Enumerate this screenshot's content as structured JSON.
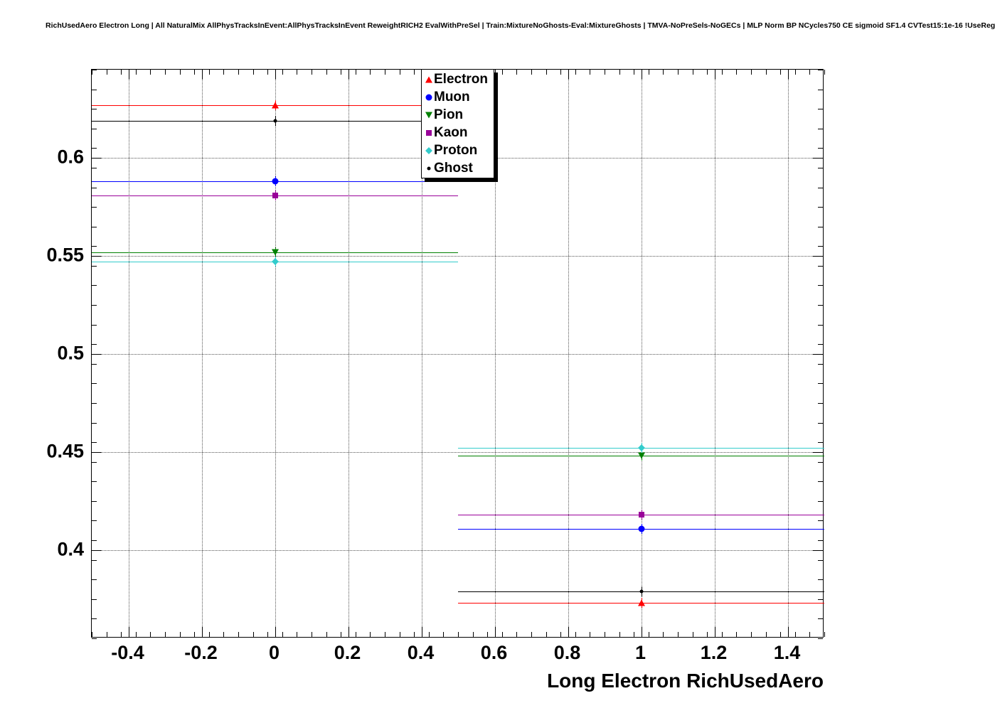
{
  "title": "RichUsedAero Electron Long | All NaturalMix AllPhysTracksInEvent:AllPhysTracksInEvent ReweightRICH2 EvalWithPreSel | Train:MixtureNoGhosts-Eval:MixtureGhosts | TMVA-NoPreSels-NoGECs | MLP Norm BP NCycles750 CE sigmoid SF1.4 CVTest15:1e-16 !UseReg",
  "chart_data": {
    "type": "scatter",
    "title": "",
    "xlabel": "Long Electron RichUsedAero",
    "ylabel": "",
    "xlim": [
      -0.5,
      1.5
    ],
    "ylim": [
      0.355,
      0.645
    ],
    "grid": true,
    "legend_position": "top-center",
    "x_ticks": [
      -0.4,
      -0.2,
      0,
      0.2,
      0.4,
      0.6,
      0.8,
      1,
      1.2,
      1.4
    ],
    "x_tick_labels": [
      "-0.4",
      "-0.2",
      "0",
      "0.2",
      "0.4",
      "0.6",
      "0.8",
      "1",
      "1.2",
      "1.4"
    ],
    "y_ticks": [
      0.4,
      0.45,
      0.5,
      0.55,
      0.6
    ],
    "y_tick_labels": [
      "0.4",
      "0.45",
      "0.5",
      "0.55",
      "0.6"
    ],
    "x_minor_step": 0.04,
    "y_minor_step": 0.01,
    "series": [
      {
        "name": "Electron",
        "color": "#ff0000",
        "marker": "triangle-up",
        "points": [
          {
            "x": 0,
            "y": 0.627,
            "xlow": -0.5,
            "xhigh": 0.5
          },
          {
            "x": 1,
            "y": 0.373,
            "xlow": 0.5,
            "xhigh": 1.5
          }
        ]
      },
      {
        "name": "Muon",
        "color": "#0000ff",
        "marker": "circle",
        "points": [
          {
            "x": 0,
            "y": 0.588,
            "xlow": -0.5,
            "xhigh": 0.5
          },
          {
            "x": 1,
            "y": 0.411,
            "xlow": 0.5,
            "xhigh": 1.5
          }
        ]
      },
      {
        "name": "Pion",
        "color": "#008000",
        "marker": "triangle-down",
        "points": [
          {
            "x": 0,
            "y": 0.552,
            "xlow": -0.5,
            "xhigh": 0.5
          },
          {
            "x": 1,
            "y": 0.448,
            "xlow": 0.5,
            "xhigh": 1.5
          }
        ]
      },
      {
        "name": "Kaon",
        "color": "#990099",
        "marker": "square",
        "points": [
          {
            "x": 0,
            "y": 0.581,
            "xlow": -0.5,
            "xhigh": 0.5
          },
          {
            "x": 1,
            "y": 0.418,
            "xlow": 0.5,
            "xhigh": 1.5
          }
        ]
      },
      {
        "name": "Proton",
        "color": "#33cccc",
        "marker": "diamond",
        "points": [
          {
            "x": 0,
            "y": 0.547,
            "xlow": -0.5,
            "xhigh": 0.5
          },
          {
            "x": 1,
            "y": 0.452,
            "xlow": 0.5,
            "xhigh": 1.5
          }
        ]
      },
      {
        "name": "Ghost",
        "color": "#000000",
        "marker": "dot",
        "points": [
          {
            "x": 0,
            "y": 0.619,
            "xlow": -0.5,
            "xhigh": 0.5
          },
          {
            "x": 1,
            "y": 0.379,
            "xlow": 0.5,
            "xhigh": 1.5
          }
        ]
      }
    ]
  }
}
